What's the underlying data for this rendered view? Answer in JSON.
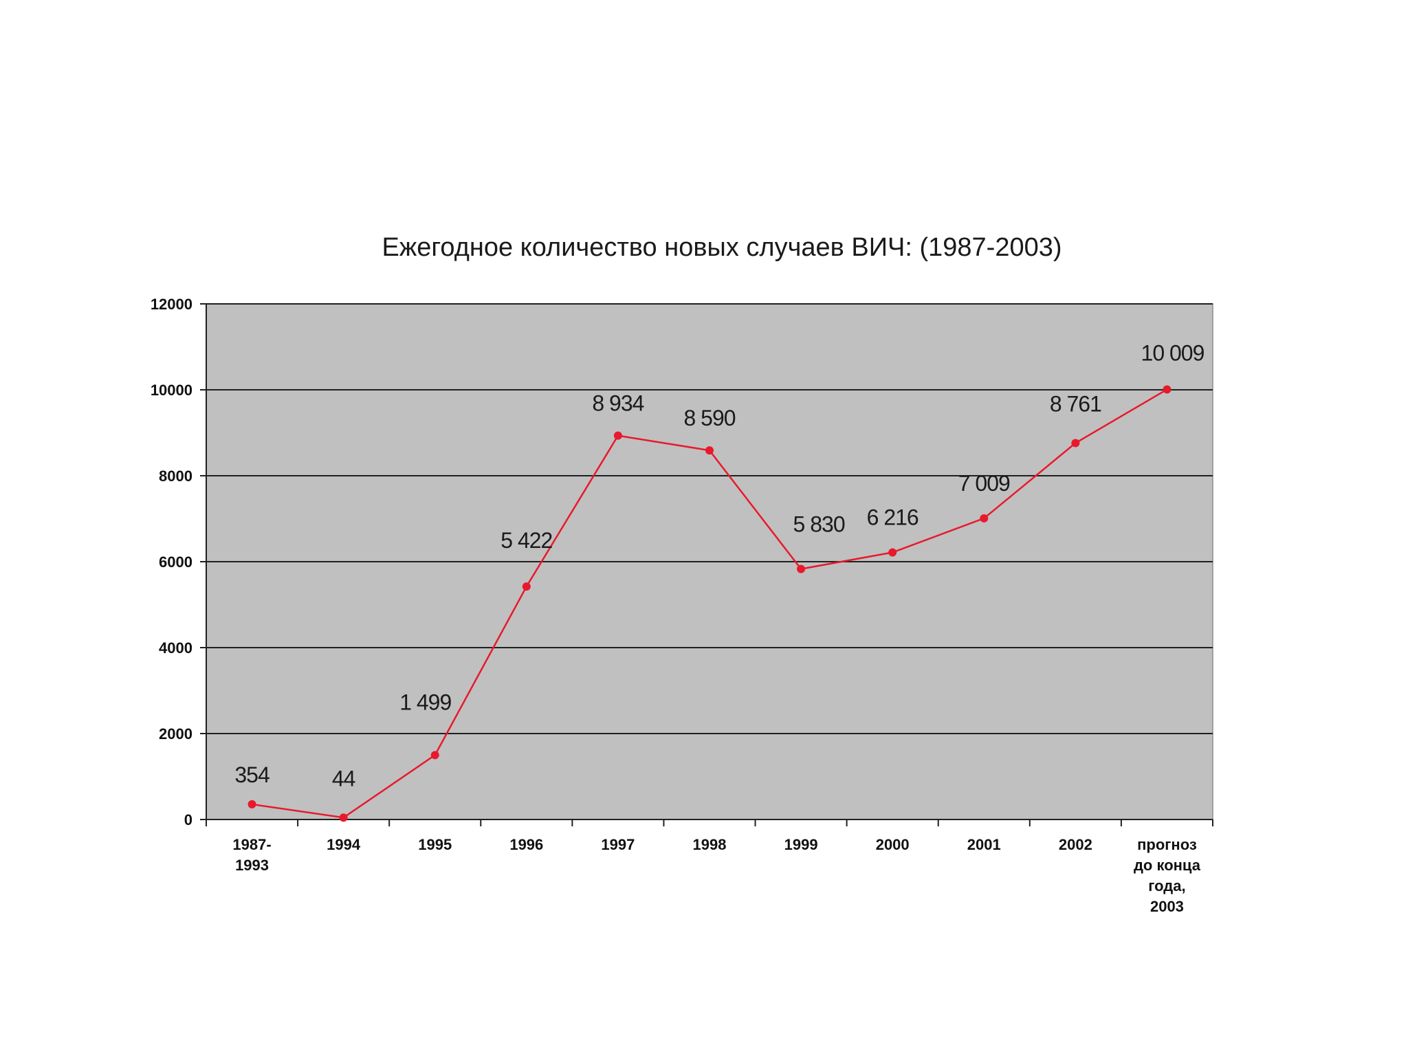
{
  "chart_data": {
    "type": "line",
    "title": "Ежегодное количество новых случаев ВИЧ: (1987-2003)",
    "xlabel": "",
    "ylabel": "",
    "ylim": [
      0,
      12000
    ],
    "yticks": [
      0,
      2000,
      4000,
      6000,
      8000,
      10000,
      12000
    ],
    "ytick_labels": [
      "0",
      "2000",
      "4000",
      "6000",
      "8000",
      "10000",
      "12000"
    ],
    "grid": true,
    "plot_background": "#c0c0c0",
    "categories": [
      [
        "1987-",
        "1993"
      ],
      [
        "1994"
      ],
      [
        "1995"
      ],
      [
        "1996"
      ],
      [
        "1997"
      ],
      [
        "1998"
      ],
      [
        "1999"
      ],
      [
        "2000"
      ],
      [
        "2001"
      ],
      [
        "2002"
      ],
      [
        "прогноз",
        "до конца",
        "года,",
        "2003"
      ]
    ],
    "series": [
      {
        "values": [
          354,
          44,
          1499,
          5422,
          8934,
          8590,
          5830,
          6216,
          7009,
          8761,
          10009
        ],
        "data_labels": [
          "354",
          "44",
          "1 499",
          "5 422",
          "8 934",
          "8 590",
          "5 830",
          "6 216",
          "7 009",
          "8 761",
          "10 009"
        ],
        "color": "#e8192c"
      }
    ]
  }
}
